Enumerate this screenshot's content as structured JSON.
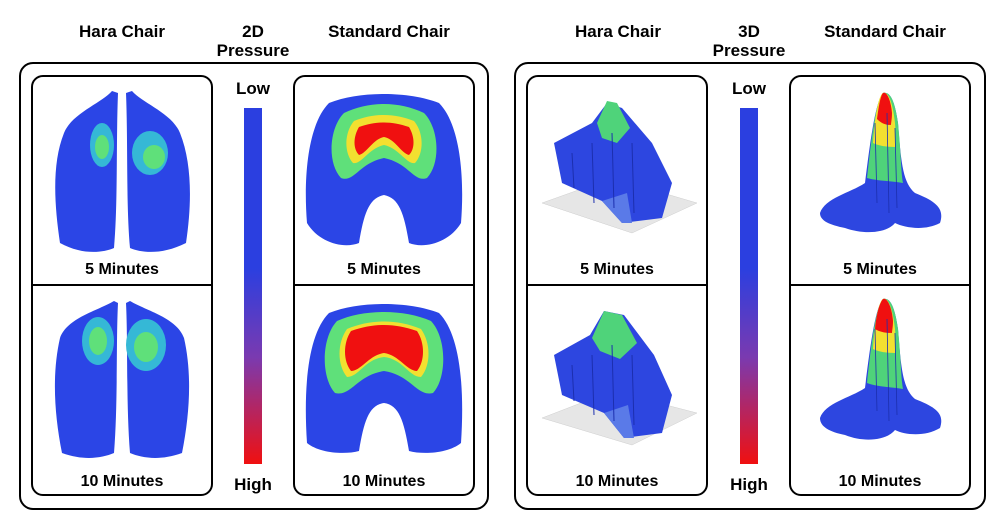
{
  "left": {
    "header_left": "Hara Chair",
    "header_mid_line1": "2D",
    "header_mid_line2": "Pressure",
    "header_right": "Standard Chair",
    "scale_low": "Low",
    "scale_high": "High",
    "hara_top_caption": "5 Minutes",
    "hara_bottom_caption": "10 Minutes",
    "std_top_caption": "5 Minutes",
    "std_bottom_caption": "10 Minutes"
  },
  "right": {
    "header_left": "Hara Chair",
    "header_mid_line1": "3D",
    "header_mid_line2": "Pressure",
    "header_right": "Standard Chair",
    "scale_low": "Low",
    "scale_high": "High",
    "hara_top_caption": "5 Minutes",
    "hara_bottom_caption": "10 Minutes",
    "std_top_caption": "5 Minutes",
    "std_bottom_caption": "10 Minutes"
  },
  "colors": {
    "low": "#2b3fe0",
    "mid": "#38d27a",
    "high": "#f01010"
  }
}
